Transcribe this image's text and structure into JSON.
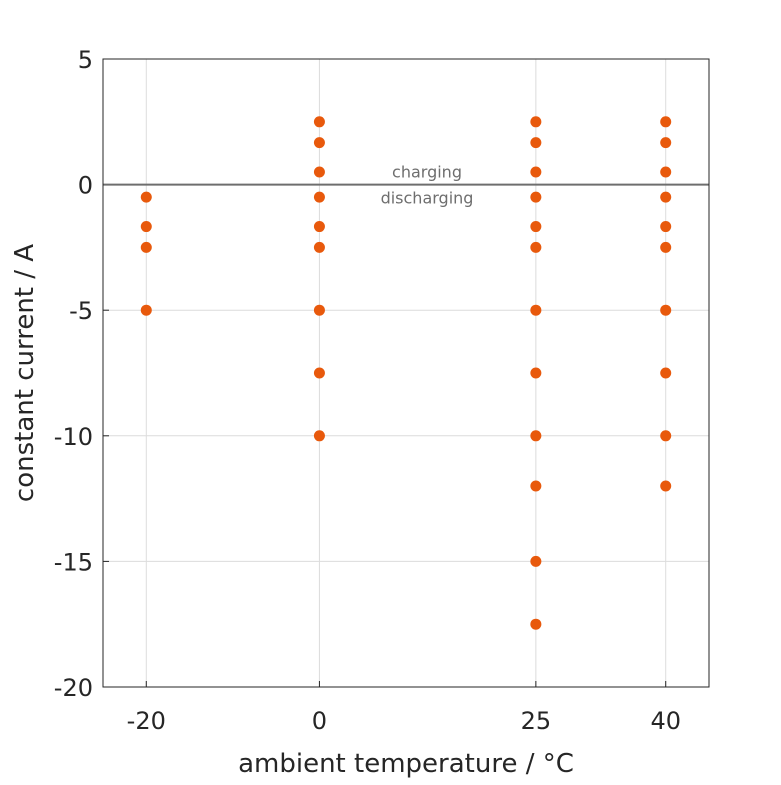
{
  "chart_data": {
    "type": "scatter",
    "title": "",
    "xlabel": "ambient temperature / °C",
    "ylabel": "constant current / A",
    "xlim": [
      -25,
      45
    ],
    "ylim": [
      -20,
      5
    ],
    "xticks": [
      -20,
      0,
      25,
      40
    ],
    "yticks": [
      5,
      0,
      -5,
      -10,
      -15,
      -20
    ],
    "xtick_labels": [
      "-20",
      "0",
      "25",
      "40"
    ],
    "ytick_labels": [
      "5",
      "0",
      "-5",
      "-10",
      "-15",
      "-20"
    ],
    "grid": true,
    "marker_color": "#E8590C",
    "reference_line": {
      "y": 0,
      "color": "#6e6e6e"
    },
    "annotations": {
      "above": "charging",
      "below": "discharging"
    },
    "series": [
      {
        "name": "measurements",
        "points": [
          {
            "x": -20,
            "y": -0.5
          },
          {
            "x": -20,
            "y": -1.67
          },
          {
            "x": -20,
            "y": -2.5
          },
          {
            "x": -20,
            "y": -5
          },
          {
            "x": 0,
            "y": 2.5
          },
          {
            "x": 0,
            "y": 1.67
          },
          {
            "x": 0,
            "y": 0.5
          },
          {
            "x": 0,
            "y": -0.5
          },
          {
            "x": 0,
            "y": -1.67
          },
          {
            "x": 0,
            "y": -2.5
          },
          {
            "x": 0,
            "y": -5
          },
          {
            "x": 0,
            "y": -7.5
          },
          {
            "x": 0,
            "y": -10
          },
          {
            "x": 25,
            "y": 2.5
          },
          {
            "x": 25,
            "y": 1.67
          },
          {
            "x": 25,
            "y": 0.5
          },
          {
            "x": 25,
            "y": -0.5
          },
          {
            "x": 25,
            "y": -1.67
          },
          {
            "x": 25,
            "y": -2.5
          },
          {
            "x": 25,
            "y": -5
          },
          {
            "x": 25,
            "y": -7.5
          },
          {
            "x": 25,
            "y": -10
          },
          {
            "x": 25,
            "y": -12
          },
          {
            "x": 25,
            "y": -15
          },
          {
            "x": 25,
            "y": -17.5
          },
          {
            "x": 40,
            "y": 2.5
          },
          {
            "x": 40,
            "y": 1.67
          },
          {
            "x": 40,
            "y": 0.5
          },
          {
            "x": 40,
            "y": -0.5
          },
          {
            "x": 40,
            "y": -1.67
          },
          {
            "x": 40,
            "y": -2.5
          },
          {
            "x": 40,
            "y": -5
          },
          {
            "x": 40,
            "y": -7.5
          },
          {
            "x": 40,
            "y": -10
          },
          {
            "x": 40,
            "y": -12
          }
        ]
      }
    ]
  }
}
